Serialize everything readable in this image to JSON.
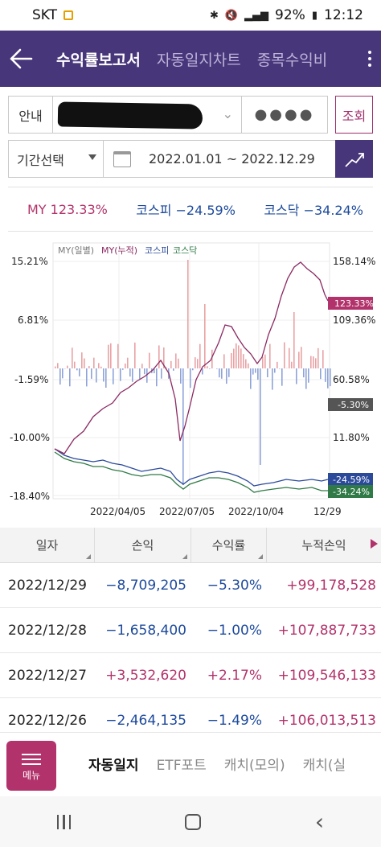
{
  "status": {
    "carrier": "SKT",
    "battery": "92%",
    "time": "12:12"
  },
  "header": {
    "tabs": [
      {
        "label": "수익률보고서",
        "active": true
      },
      {
        "label": "자동일지차트",
        "active": false
      },
      {
        "label": "종목수익비",
        "active": false
      }
    ]
  },
  "controls": {
    "info_label": "안내",
    "account_masked": "●●●●",
    "lookup_label": "조회",
    "period_label": "기간선택",
    "date_range": "2022.01.01 ~ 2022.12.29"
  },
  "summary": {
    "my": "MY 123.33%",
    "kospi": "코스피 −24.59%",
    "kosdaq": "코스닥 −34.24%"
  },
  "chart_data": {
    "type": "line",
    "legend": [
      "MY(일별)",
      "MY(누적)",
      "코스피",
      "코스닥"
    ],
    "left_axis_ticks": [
      "15.21%",
      "6.81%",
      "-1.59%",
      "-10.00%",
      "-18.40%"
    ],
    "right_axis_ticks": [
      "158.14%",
      "109.36%",
      "60.58%",
      "11.80%"
    ],
    "x_ticks": [
      "2022/04/05",
      "2022/07/05",
      "2022/10/04",
      "12/29"
    ],
    "end_labels": {
      "my_cum": "123.33%",
      "my_daily": "-5.30%",
      "kospi": "-24.59%",
      "kosdaq": "-34.24%"
    },
    "colors": {
      "my_cum": "#8b2a62",
      "daily_pos": "#e8a2a4",
      "daily_neg": "#8ea3d8",
      "kospi": "#2b4a9a",
      "kosdaq": "#2f7a46"
    }
  },
  "table": {
    "headers": [
      "일자",
      "손익",
      "수익률",
      "누적손익"
    ],
    "rows": [
      {
        "date": "2022/12/29",
        "pnl": "−8,709,205",
        "rate": "−5.30%",
        "cum": "+99,178,528",
        "sign": "neg"
      },
      {
        "date": "2022/12/28",
        "pnl": "−1,658,400",
        "rate": "−1.00%",
        "cum": "+107,887,733",
        "sign": "neg"
      },
      {
        "date": "2022/12/27",
        "pnl": "+3,532,620",
        "rate": "+2.17%",
        "cum": "+109,546,133",
        "sign": "pos"
      },
      {
        "date": "2022/12/26",
        "pnl": "−2,464,135",
        "rate": "−1.49%",
        "cum": "+106,013,513",
        "sign": "neg"
      }
    ]
  },
  "bottom": {
    "menu_label": "메뉴",
    "tabs": [
      "자동일지",
      "ETF포트",
      "캐치(모의)",
      "캐치(실"
    ]
  }
}
